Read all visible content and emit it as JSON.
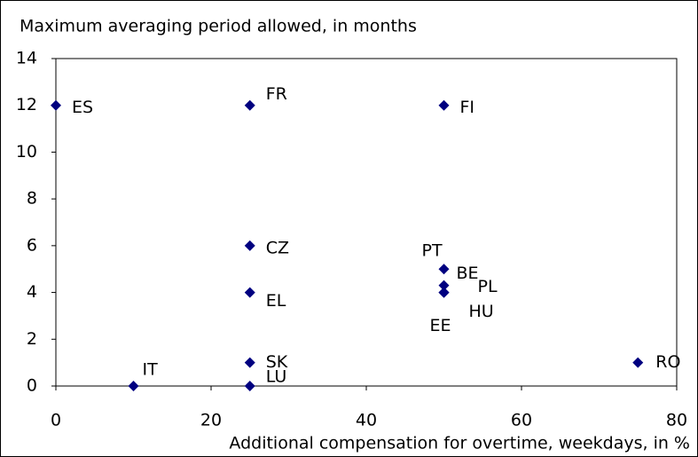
{
  "chart_data": {
    "type": "scatter",
    "title": "Maximum averaging period allowed, in months",
    "x_label": "Additional compensation for overtime, weekdays, in %",
    "point_labels": [
      "ES",
      "FR",
      "FI",
      "CZ",
      "EL",
      "SK",
      "LU",
      "IT",
      "RO",
      "PT",
      "BE",
      "PL",
      "HU",
      "EE"
    ],
    "x": [
      0,
      25,
      50,
      25,
      25,
      25,
      25,
      10,
      75,
      50,
      50,
      50,
      50,
      50
    ],
    "values": [
      12,
      12,
      12,
      6,
      4,
      1,
      0,
      0,
      1,
      5,
      4.3,
      4,
      4,
      4
    ],
    "color": "#000080",
    "xlim": [
      0,
      80
    ],
    "xticks": [
      0,
      20,
      40,
      60,
      80
    ],
    "ylim": [
      0,
      14
    ],
    "yticks": [
      0,
      2,
      4,
      6,
      8,
      10,
      12,
      14
    ],
    "grid": false
  }
}
